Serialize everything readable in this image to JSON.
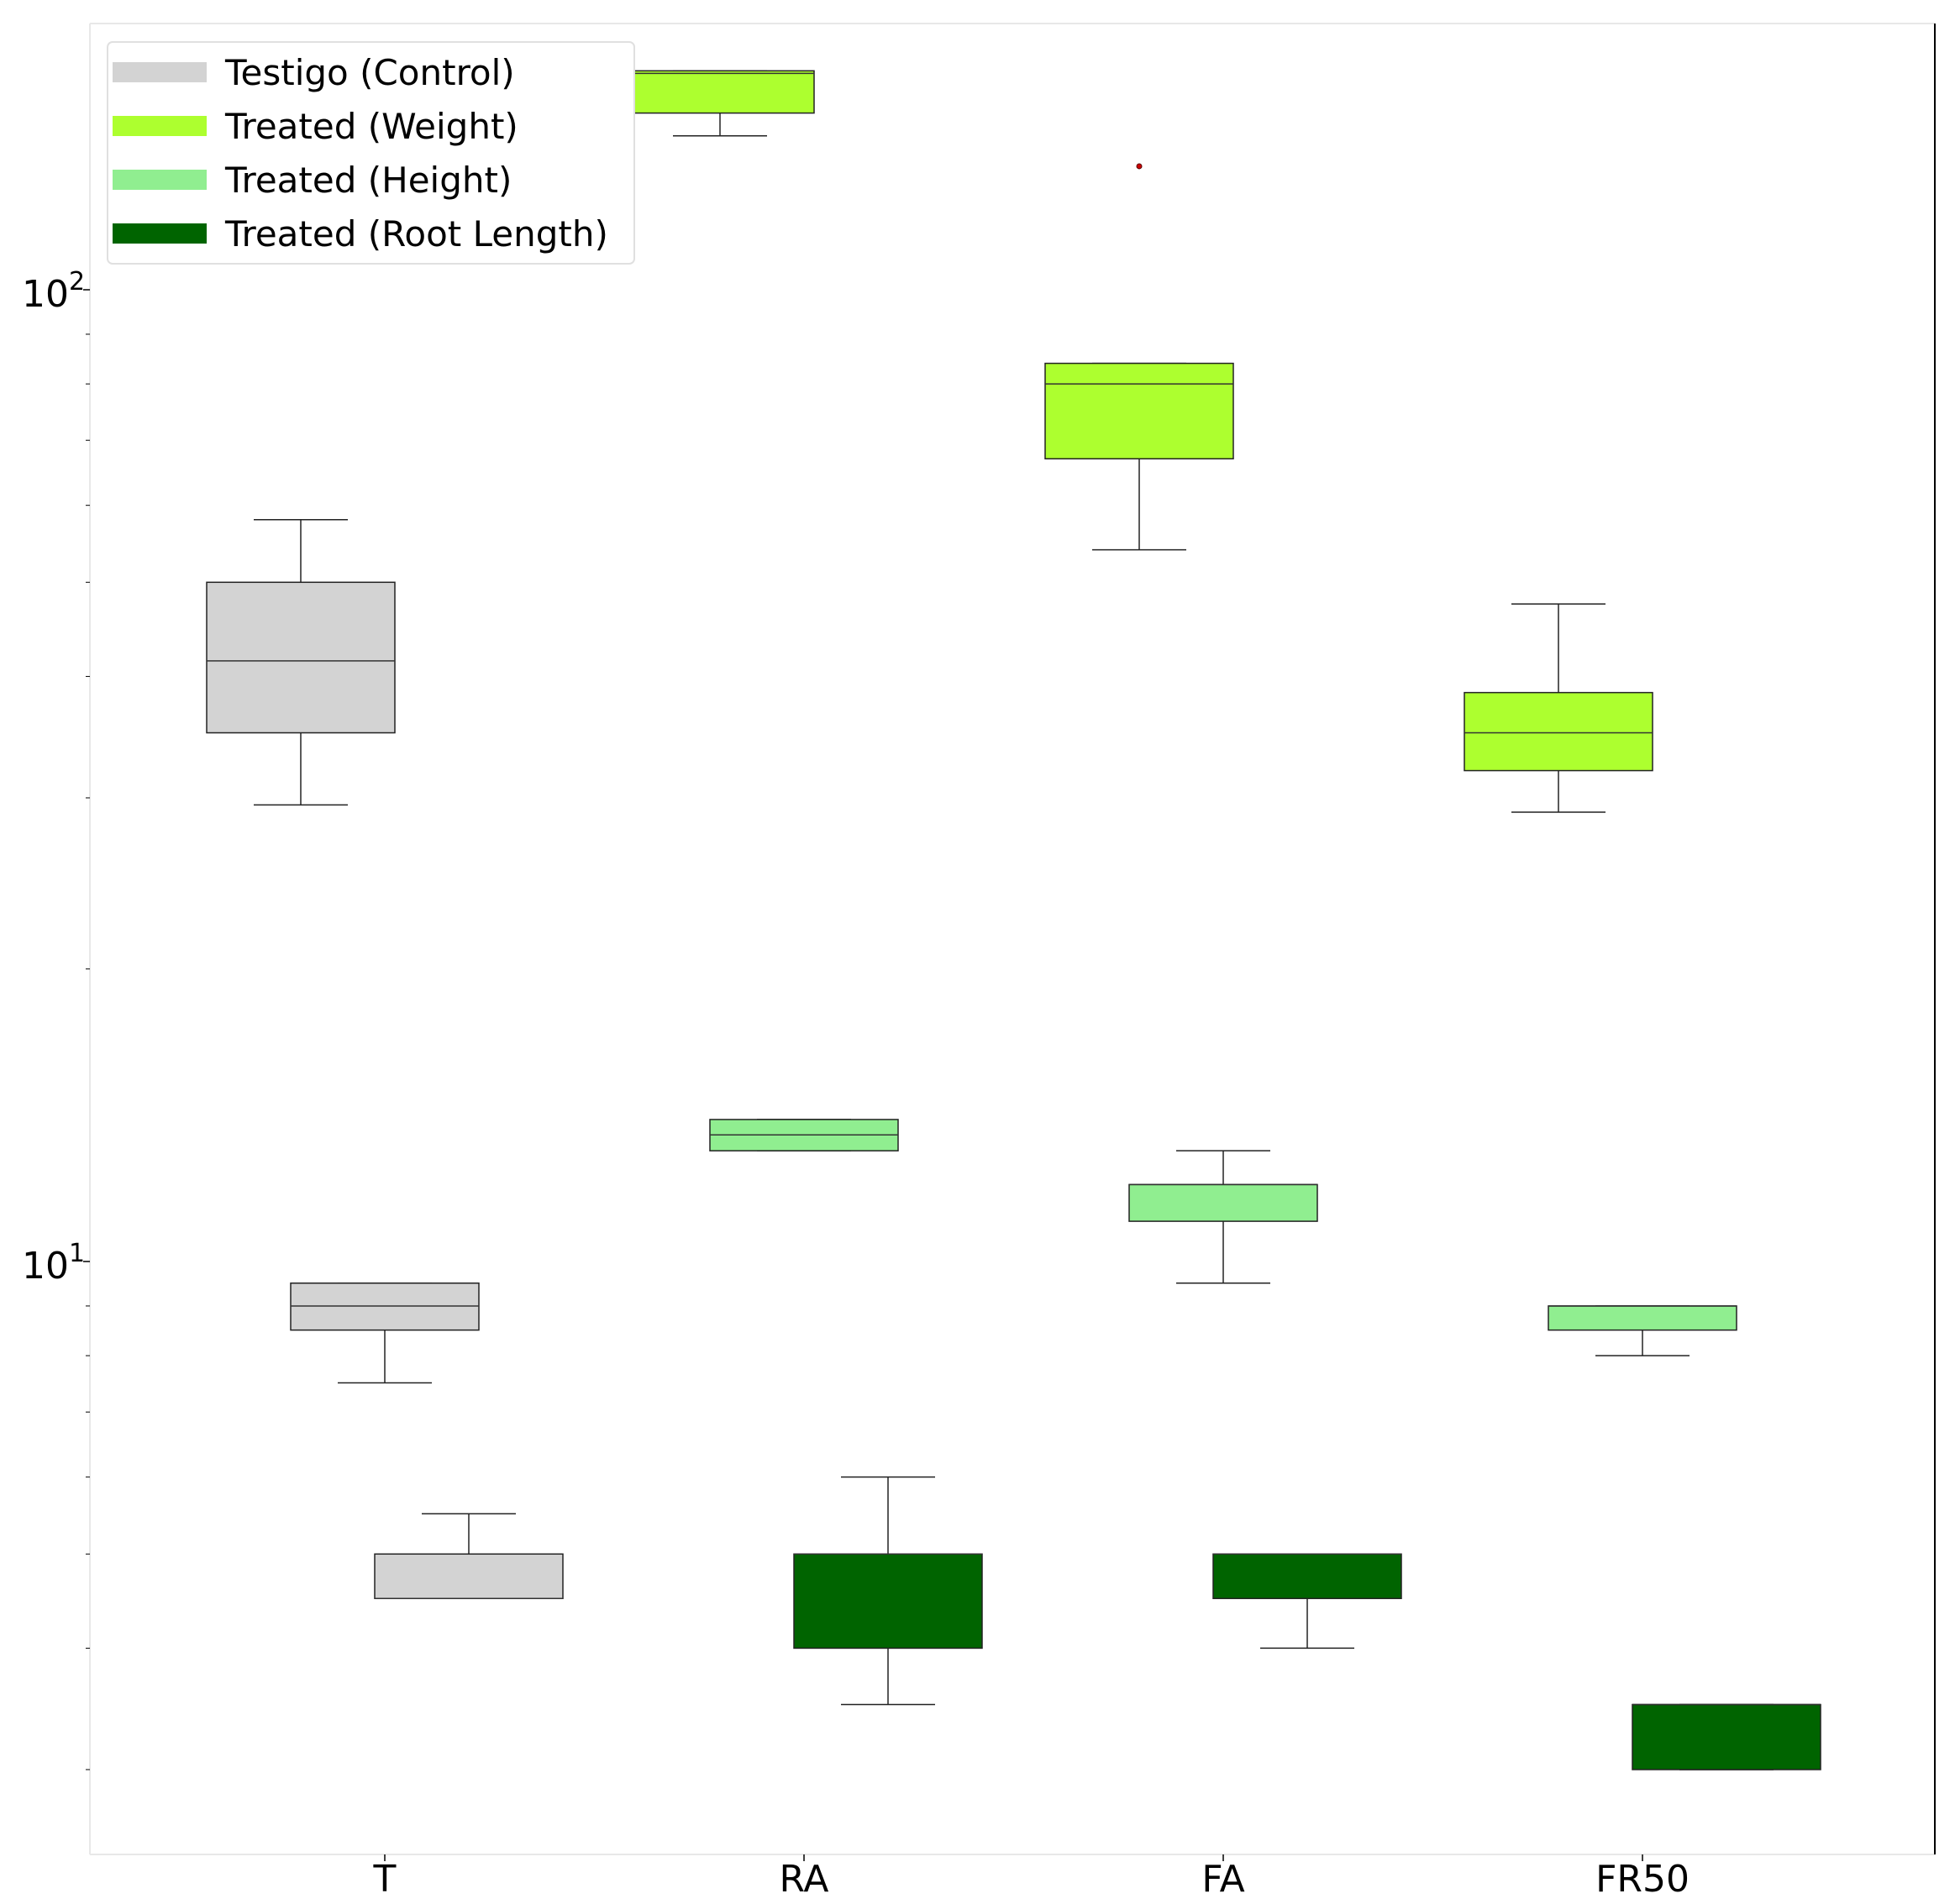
{
  "chart_data": {
    "type": "box",
    "scale": "log",
    "categories": [
      "T",
      "RA",
      "FA",
      "FR50"
    ],
    "y_ticks": [
      {
        "value": 10,
        "base": "10",
        "exp": "1"
      },
      {
        "value": 100,
        "base": "10",
        "exp": "2"
      }
    ],
    "ylim": [
      2.55,
      170
    ],
    "grid": false,
    "legend_position": "top-left",
    "series": [
      {
        "name": "Testigo (Control)",
        "color": "#d3d3d3",
        "boxes": [
          {
            "category": "T",
            "group": "Weight",
            "min": 29.5,
            "q1": 35.0,
            "median": 41.5,
            "q3": 50.0,
            "max": 58.0
          },
          {
            "category": "T",
            "group": "Height",
            "min": 7.5,
            "q1": 8.5,
            "median": 9.0,
            "q3": 9.5,
            "max": 9.5
          },
          {
            "category": "T",
            "group": "Root Length",
            "min": 4.5,
            "q1": 4.5,
            "median": 4.5,
            "q3": 5.0,
            "max": 5.5
          }
        ]
      },
      {
        "name": "Treated (Weight)",
        "color": "#adff2f",
        "boxes": [
          {
            "category": "RA",
            "min": 144,
            "q1": 152,
            "median": 167,
            "q3": 168,
            "max": 168
          },
          {
            "category": "FA",
            "min": 54,
            "q1": 67,
            "median": 80,
            "q3": 84,
            "max": 84,
            "outliers": [
              134
            ]
          },
          {
            "category": "FR50",
            "min": 29,
            "q1": 32,
            "median": 35,
            "q3": 38.5,
            "max": 47.5
          }
        ]
      },
      {
        "name": "Treated (Height)",
        "color": "#90ee90",
        "boxes": [
          {
            "category": "RA",
            "min": 13.0,
            "q1": 13.0,
            "median": 13.5,
            "q3": 14.0,
            "max": 14.0
          },
          {
            "category": "FA",
            "min": 9.5,
            "q1": 11.0,
            "median": 12.0,
            "q3": 12.0,
            "max": 13.0
          },
          {
            "category": "FR50",
            "min": 8.0,
            "q1": 8.5,
            "median": 9.0,
            "q3": 9.0,
            "max": 9.0
          }
        ]
      },
      {
        "name": "Treated (Root Length)",
        "color": "#006400",
        "boxes": [
          {
            "category": "RA",
            "min": 3.5,
            "q1": 4.0,
            "median": 5.0,
            "q3": 5.0,
            "max": 6.0
          },
          {
            "category": "FA",
            "min": 4.0,
            "q1": 4.5,
            "median": 5.0,
            "q3": 5.0,
            "max": 5.0
          },
          {
            "category": "FR50",
            "min": 3.0,
            "q1": 3.0,
            "median": 3.5,
            "q3": 3.5,
            "max": 3.5
          }
        ]
      }
    ]
  }
}
